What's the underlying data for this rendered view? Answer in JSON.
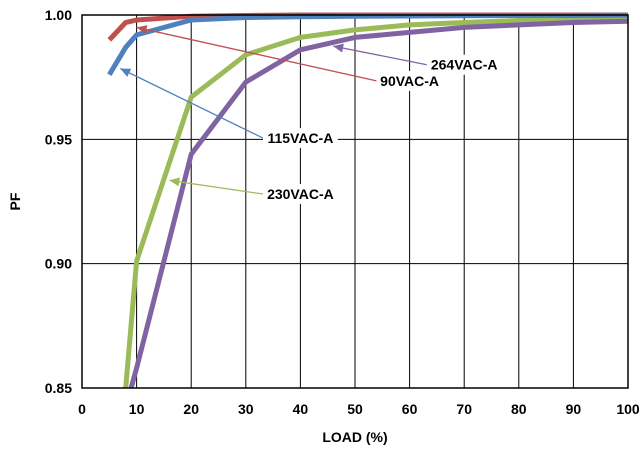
{
  "chart_data": {
    "type": "line",
    "xlabel": "LOAD (%)",
    "ylabel": "PF",
    "xlim": [
      0,
      100
    ],
    "ylim": [
      0.85,
      1.0
    ],
    "x_ticks": [
      "0",
      "10",
      "20",
      "30",
      "40",
      "50",
      "60",
      "70",
      "80",
      "90",
      "100"
    ],
    "y_ticks": [
      "0.85",
      "0.90",
      "0.95",
      "1.00"
    ],
    "grid": true,
    "series": [
      {
        "name": "90VAC-A",
        "color": "#c0504d",
        "x": [
          5,
          8,
          10,
          20,
          30,
          40,
          50,
          60,
          70,
          80,
          90,
          100
        ],
        "y": [
          0.99,
          0.997,
          0.998,
          0.9995,
          0.9998,
          1.0,
          1.0,
          1.0,
          1.0,
          1.0,
          1.0,
          1.0
        ]
      },
      {
        "name": "115VAC-A",
        "color": "#4f81bd",
        "x": [
          5,
          8,
          10,
          20,
          30,
          40,
          50,
          60,
          70,
          80,
          90,
          100
        ],
        "y": [
          0.976,
          0.987,
          0.992,
          0.998,
          0.999,
          0.9993,
          0.9995,
          0.9996,
          0.9997,
          0.9998,
          0.9998,
          0.9999
        ]
      },
      {
        "name": "230VAC-A",
        "color": "#9bbb59",
        "x": [
          8,
          10,
          20,
          30,
          40,
          50,
          60,
          70,
          80,
          90,
          100
        ],
        "y": [
          0.85,
          0.901,
          0.967,
          0.984,
          0.991,
          0.994,
          0.996,
          0.997,
          0.9978,
          0.9982,
          0.9985
        ]
      },
      {
        "name": "264VAC-A",
        "color": "#8064a2",
        "x": [
          9,
          10,
          20,
          30,
          40,
          50,
          60,
          70,
          80,
          90,
          100
        ],
        "y": [
          0.85,
          0.858,
          0.944,
          0.973,
          0.986,
          0.991,
          0.993,
          0.995,
          0.996,
          0.997,
          0.9975
        ]
      }
    ],
    "annotations": [
      {
        "text": "90VAC-A",
        "series": "90VAC-A",
        "point_x": 10,
        "point_y": 0.995,
        "label_x": 60,
        "label_y": 0.9735
      },
      {
        "text": "115VAC-A",
        "series": "115VAC-A",
        "point_x": 7,
        "point_y": 0.9785,
        "label_x": 40,
        "label_y": 0.9505
      },
      {
        "text": "230VAC-A",
        "series": "230VAC-A",
        "point_x": 16,
        "point_y": 0.9335,
        "label_x": 40,
        "label_y": 0.928
      },
      {
        "text": "264VAC-A",
        "series": "264VAC-A",
        "point_x": 46,
        "point_y": 0.9875,
        "label_x": 70,
        "label_y": 0.98
      }
    ]
  }
}
